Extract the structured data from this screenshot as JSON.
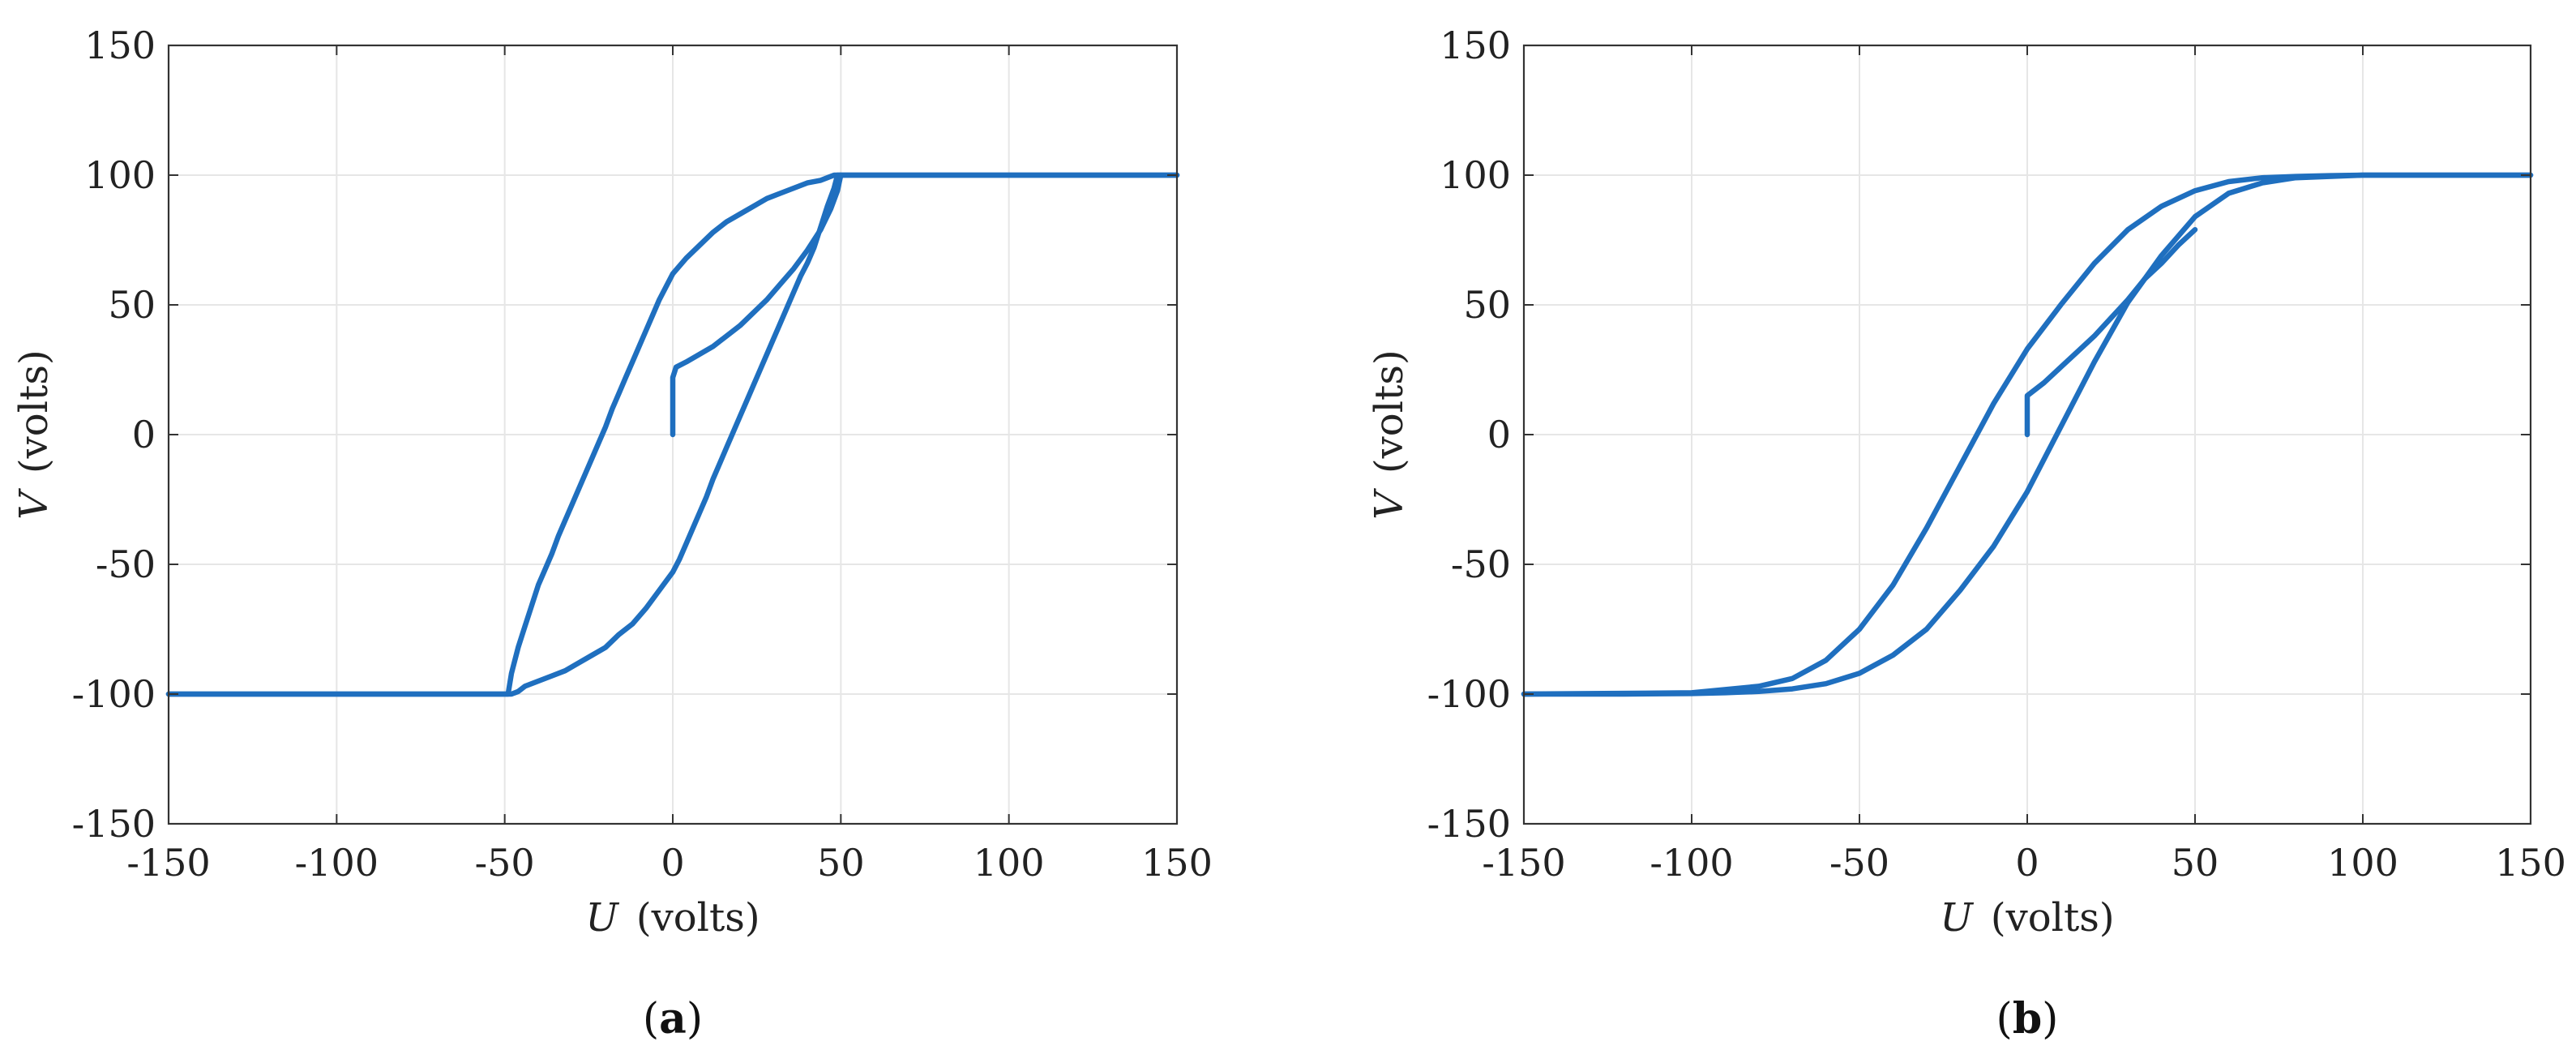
{
  "chart_data": [
    {
      "type": "line",
      "panel_label": {
        "open": "(",
        "letter": "a",
        "close": ")"
      },
      "xlabel": {
        "var": "U",
        "unit": "(volts)"
      },
      "ylabel": {
        "var": "V",
        "unit": "(volts)"
      },
      "xlim": [
        -150,
        150
      ],
      "ylim": [
        -150,
        150
      ],
      "xticks": [
        -150,
        -100,
        -50,
        0,
        50,
        100,
        150
      ],
      "yticks": [
        -150,
        -100,
        -50,
        0,
        50,
        100,
        150
      ],
      "grid": true,
      "color": "#1f6fbf",
      "series": [
        {
          "points": [
            [
              -150,
              -100
            ],
            [
              -50,
              -100
            ],
            [
              -48,
              -100
            ],
            [
              -46,
              -99
            ],
            [
              -44,
              -97
            ],
            [
              -40,
              -95
            ],
            [
              -36,
              -93
            ],
            [
              -32,
              -91
            ],
            [
              -28,
              -88
            ],
            [
              -24,
              -85
            ],
            [
              -20,
              -82
            ],
            [
              -16,
              -77
            ],
            [
              -12,
              -73
            ],
            [
              -8,
              -67
            ],
            [
              -4,
              -60
            ],
            [
              0,
              -53
            ],
            [
              2,
              -48
            ],
            [
              4,
              -42
            ],
            [
              6,
              -36
            ],
            [
              8,
              -30
            ],
            [
              10,
              -24
            ],
            [
              12,
              -17
            ],
            [
              14,
              -11
            ],
            [
              16,
              -5
            ],
            [
              18,
              1
            ],
            [
              20,
              7
            ],
            [
              22,
              13
            ],
            [
              24,
              19
            ],
            [
              26,
              25
            ],
            [
              28,
              31
            ],
            [
              30,
              37
            ],
            [
              32,
              43
            ],
            [
              34,
              49
            ],
            [
              36,
              55
            ],
            [
              38,
              61
            ],
            [
              40,
              66
            ],
            [
              42,
              72
            ],
            [
              44,
              80
            ],
            [
              46,
              88
            ],
            [
              48,
              95
            ],
            [
              49,
              100
            ],
            [
              150,
              100
            ]
          ]
        },
        {
          "points": [
            [
              150,
              100
            ],
            [
              50,
              100
            ],
            [
              48,
              100
            ],
            [
              46,
              99
            ],
            [
              44,
              98
            ],
            [
              40,
              97
            ],
            [
              36,
              95
            ],
            [
              32,
              93
            ],
            [
              28,
              91
            ],
            [
              24,
              88
            ],
            [
              20,
              85
            ],
            [
              16,
              82
            ],
            [
              12,
              78
            ],
            [
              8,
              73
            ],
            [
              4,
              68
            ],
            [
              0,
              62
            ],
            [
              -2,
              57
            ],
            [
              -4,
              52
            ],
            [
              -6,
              46
            ],
            [
              -8,
              40
            ],
            [
              -10,
              34
            ],
            [
              -12,
              28
            ],
            [
              -14,
              22
            ],
            [
              -16,
              16
            ],
            [
              -18,
              10
            ],
            [
              -20,
              3
            ],
            [
              -22,
              -3
            ],
            [
              -24,
              -9
            ],
            [
              -26,
              -15
            ],
            [
              -28,
              -21
            ],
            [
              -30,
              -27
            ],
            [
              -32,
              -33
            ],
            [
              -34,
              -39
            ],
            [
              -36,
              -46
            ],
            [
              -38,
              -52
            ],
            [
              -40,
              -58
            ],
            [
              -42,
              -66
            ],
            [
              -44,
              -74
            ],
            [
              -46,
              -82
            ],
            [
              -48,
              -92
            ],
            [
              -49,
              -100
            ],
            [
              -150,
              -100
            ]
          ]
        },
        {
          "points": [
            [
              0,
              0
            ],
            [
              0,
              22
            ],
            [
              1,
              26
            ],
            [
              4,
              28
            ],
            [
              8,
              31
            ],
            [
              12,
              34
            ],
            [
              16,
              38
            ],
            [
              20,
              42
            ],
            [
              24,
              47
            ],
            [
              28,
              52
            ],
            [
              32,
              58
            ],
            [
              36,
              64
            ],
            [
              40,
              71
            ],
            [
              44,
              79
            ],
            [
              47,
              87
            ],
            [
              49,
              94
            ],
            [
              50,
              100
            ]
          ]
        }
      ]
    },
    {
      "type": "line",
      "panel_label": {
        "open": "(",
        "letter": "b",
        "close": ")"
      },
      "xlabel": {
        "var": "U",
        "unit": "(volts)"
      },
      "ylabel": {
        "var": "V",
        "unit": "(volts)"
      },
      "xlim": [
        -150,
        150
      ],
      "ylim": [
        -150,
        150
      ],
      "xticks": [
        -150,
        -100,
        -50,
        0,
        50,
        100,
        150
      ],
      "yticks": [
        -150,
        -100,
        -50,
        0,
        50,
        100,
        150
      ],
      "grid": true,
      "color": "#1f6fbf",
      "series": [
        {
          "points": [
            [
              -150,
              -100
            ],
            [
              -120,
              -100
            ],
            [
              -100,
              -99.8
            ],
            [
              -90,
              -99.5
            ],
            [
              -80,
              -99
            ],
            [
              -70,
              -98
            ],
            [
              -60,
              -96
            ],
            [
              -50,
              -92
            ],
            [
              -40,
              -85
            ],
            [
              -30,
              -75
            ],
            [
              -20,
              -60
            ],
            [
              -10,
              -43
            ],
            [
              0,
              -22
            ],
            [
              10,
              3
            ],
            [
              20,
              28
            ],
            [
              30,
              51
            ],
            [
              40,
              69
            ],
            [
              50,
              84
            ],
            [
              60,
              93
            ],
            [
              70,
              97
            ],
            [
              80,
              99
            ],
            [
              100,
              100
            ],
            [
              150,
              100
            ]
          ]
        },
        {
          "points": [
            [
              150,
              100
            ],
            [
              100,
              100
            ],
            [
              90,
              99.8
            ],
            [
              80,
              99.5
            ],
            [
              70,
              99
            ],
            [
              60,
              97.5
            ],
            [
              50,
              94
            ],
            [
              40,
              88
            ],
            [
              30,
              79
            ],
            [
              20,
              66
            ],
            [
              10,
              50
            ],
            [
              0,
              33
            ],
            [
              -10,
              12
            ],
            [
              -20,
              -12
            ],
            [
              -30,
              -36
            ],
            [
              -40,
              -58
            ],
            [
              -50,
              -75
            ],
            [
              -60,
              -87
            ],
            [
              -70,
              -94
            ],
            [
              -80,
              -97
            ],
            [
              -100,
              -99.5
            ],
            [
              -150,
              -100
            ]
          ]
        },
        {
          "points": [
            [
              0,
              0
            ],
            [
              0,
              15
            ],
            [
              5,
              20
            ],
            [
              10,
              26
            ],
            [
              15,
              32
            ],
            [
              20,
              38
            ],
            [
              25,
              45
            ],
            [
              30,
              52
            ],
            [
              35,
              60
            ],
            [
              40,
              66
            ],
            [
              45,
              73
            ],
            [
              50,
              79
            ]
          ]
        }
      ]
    }
  ]
}
